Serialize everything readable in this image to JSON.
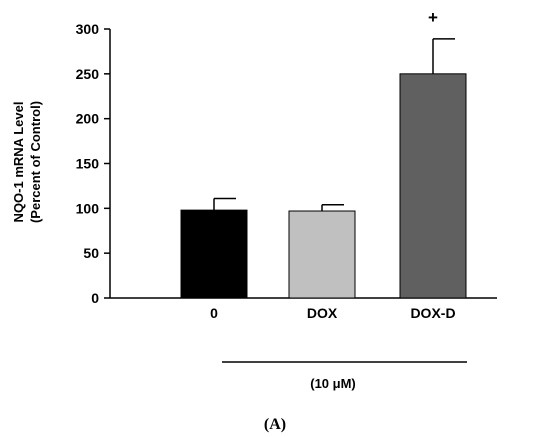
{
  "chart_data": {
    "type": "bar",
    "title": "",
    "ylabel_lines": [
      "NQO-1 mRNA Level",
      "(Percent of Control)"
    ],
    "xlabel": "",
    "ylim": [
      0,
      300
    ],
    "yticks": [
      0,
      50,
      100,
      150,
      200,
      250,
      300
    ],
    "categories": [
      "0",
      "DOX",
      "DOX-D"
    ],
    "values": [
      98,
      97,
      250
    ],
    "errors": [
      13,
      7,
      39
    ],
    "bar_colors": [
      "#000000",
      "#c0c0c0",
      "#606060"
    ],
    "significance": [
      "",
      "",
      "+"
    ],
    "concentration_label": "(10 μM)",
    "panel_label": "(A)",
    "grid": false,
    "legend": "none"
  }
}
